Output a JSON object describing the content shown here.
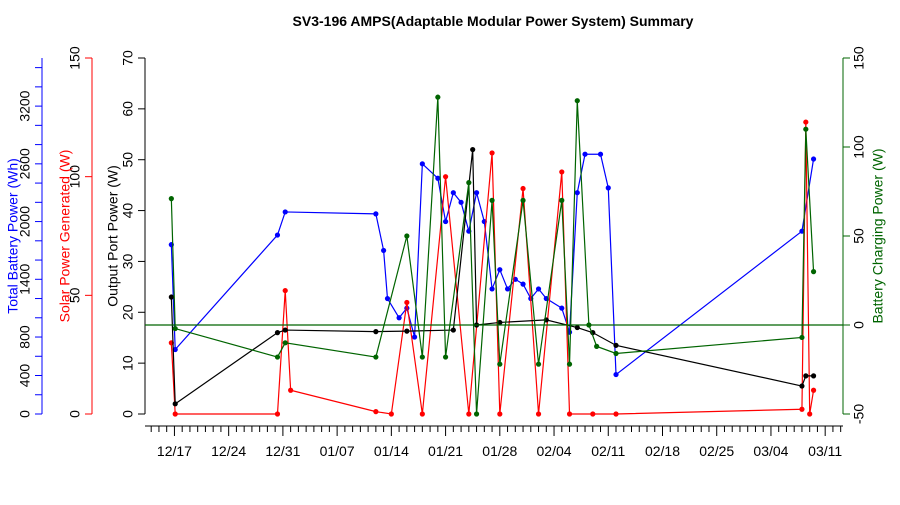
{
  "chart_data": {
    "type": "line",
    "title": "SV3-196 AMPS(Adaptable Modular Power System) Summary",
    "x_axis": {
      "ticks": [
        "12/17",
        "12/24",
        "12/31",
        "01/07",
        "01/14",
        "01/21",
        "01/28",
        "02/04",
        "02/11",
        "02/18",
        "02/25",
        "03/04",
        "03/11"
      ],
      "range_days": [
        0,
        84
      ]
    },
    "axes": {
      "battery_power": {
        "label": "Total Battery Power (Wh)",
        "color": "#0000ff",
        "range": [
          0,
          3700
        ],
        "ticks": [
          0,
          400,
          800,
          1400,
          2000,
          2600,
          3200
        ]
      },
      "solar_power": {
        "label": "Solar Power Generated (W)",
        "color": "#ff0000",
        "range": [
          0,
          150
        ],
        "ticks": [
          0,
          50,
          100,
          150
        ]
      },
      "output_power": {
        "label": "Output Port Power (W)",
        "color": "#000000",
        "range": [
          0,
          70
        ],
        "ticks": [
          0,
          10,
          20,
          30,
          40,
          50,
          60,
          70
        ]
      },
      "charging_power": {
        "label": "Battery Charging Power (W)",
        "color": "#006400",
        "range": [
          -50,
          150
        ],
        "ticks": [
          -50,
          0,
          50,
          100,
          150
        ]
      }
    },
    "series": [
      {
        "name": "Total Battery Power (Wh)",
        "color": "#0000ff",
        "axis": "battery_power",
        "points": [
          [
            -0.4,
            1760
          ],
          [
            0.1,
            670
          ],
          [
            13.3,
            1860
          ],
          [
            14.3,
            2100
          ],
          [
            26.0,
            2080
          ],
          [
            27.0,
            1700
          ],
          [
            27.5,
            1200
          ],
          [
            29.0,
            1000
          ],
          [
            30.0,
            1100
          ],
          [
            31.0,
            800
          ],
          [
            32.0,
            2600
          ],
          [
            34.0,
            2450
          ],
          [
            35.0,
            2000
          ],
          [
            36.0,
            2300
          ],
          [
            37.0,
            2200
          ],
          [
            38.0,
            1900
          ],
          [
            39.0,
            2300
          ],
          [
            40.0,
            2000
          ],
          [
            41.0,
            1300
          ],
          [
            42.0,
            1500
          ],
          [
            43.0,
            1300
          ],
          [
            44.0,
            1400
          ],
          [
            45.0,
            1350
          ],
          [
            46.0,
            1200
          ],
          [
            47.0,
            1300
          ],
          [
            48.0,
            1200
          ],
          [
            50.0,
            1100
          ],
          [
            51.0,
            850
          ],
          [
            52.0,
            2300
          ],
          [
            53.0,
            2700
          ],
          [
            55.0,
            2700
          ],
          [
            56.0,
            2350
          ],
          [
            57.0,
            410
          ],
          [
            81.0,
            1900
          ],
          [
            82.5,
            2650
          ]
        ]
      },
      {
        "name": "Solar Power Generated (W)",
        "color": "#ff0000",
        "axis": "solar_power",
        "points": [
          [
            -0.4,
            30
          ],
          [
            0.1,
            0
          ],
          [
            13.3,
            0
          ],
          [
            14.3,
            52
          ],
          [
            15.0,
            10
          ],
          [
            26.0,
            1
          ],
          [
            28.0,
            0
          ],
          [
            30.0,
            47
          ],
          [
            32.0,
            0
          ],
          [
            35.0,
            100
          ],
          [
            38.0,
            0
          ],
          [
            41.0,
            110
          ],
          [
            42.0,
            0
          ],
          [
            45.0,
            95
          ],
          [
            47.0,
            0
          ],
          [
            50.0,
            102
          ],
          [
            51.0,
            0
          ],
          [
            54.0,
            0
          ],
          [
            57.0,
            0
          ],
          [
            81.0,
            2
          ],
          [
            81.5,
            123
          ],
          [
            82.0,
            0
          ],
          [
            82.5,
            10
          ]
        ]
      },
      {
        "name": "Output Port Power (W)",
        "color": "#000000",
        "axis": "output_power",
        "points": [
          [
            -0.4,
            23
          ],
          [
            0.1,
            2
          ],
          [
            13.3,
            16
          ],
          [
            14.3,
            16.5
          ],
          [
            26.0,
            16.2
          ],
          [
            30.0,
            16.3
          ],
          [
            36.0,
            16.5
          ],
          [
            38.5,
            52
          ],
          [
            39.0,
            17.5
          ],
          [
            42.0,
            18
          ],
          [
            48.0,
            18.5
          ],
          [
            52.0,
            17
          ],
          [
            54.0,
            16
          ],
          [
            57.0,
            13.5
          ],
          [
            81.0,
            5.5
          ],
          [
            81.5,
            7.5
          ],
          [
            82.5,
            7.5
          ]
        ]
      },
      {
        "name": "Battery Charging Power (W)",
        "color": "#006400",
        "axis": "charging_power",
        "points": [
          [
            -0.4,
            71
          ],
          [
            0.1,
            -2
          ],
          [
            13.3,
            -18
          ],
          [
            14.3,
            -10
          ],
          [
            26.0,
            -18
          ],
          [
            30.0,
            50
          ],
          [
            32.0,
            -18
          ],
          [
            34.0,
            128
          ],
          [
            35.0,
            -18
          ],
          [
            38.0,
            80
          ],
          [
            39.0,
            -50
          ],
          [
            41.0,
            70
          ],
          [
            42.0,
            -22
          ],
          [
            45.0,
            70
          ],
          [
            47.0,
            -22
          ],
          [
            50.0,
            70
          ],
          [
            51.0,
            -22
          ],
          [
            52.0,
            126
          ],
          [
            53.5,
            0
          ],
          [
            54.5,
            -12
          ],
          [
            57.0,
            -16
          ],
          [
            81.0,
            -7
          ],
          [
            81.5,
            110
          ],
          [
            82.5,
            30
          ]
        ]
      },
      {
        "name": "reference_line_green",
        "color": "#006400",
        "axis": "charging_power",
        "points": [
          [
            -3.8,
            0
          ],
          [
            86.3,
            0
          ]
        ]
      }
    ]
  }
}
